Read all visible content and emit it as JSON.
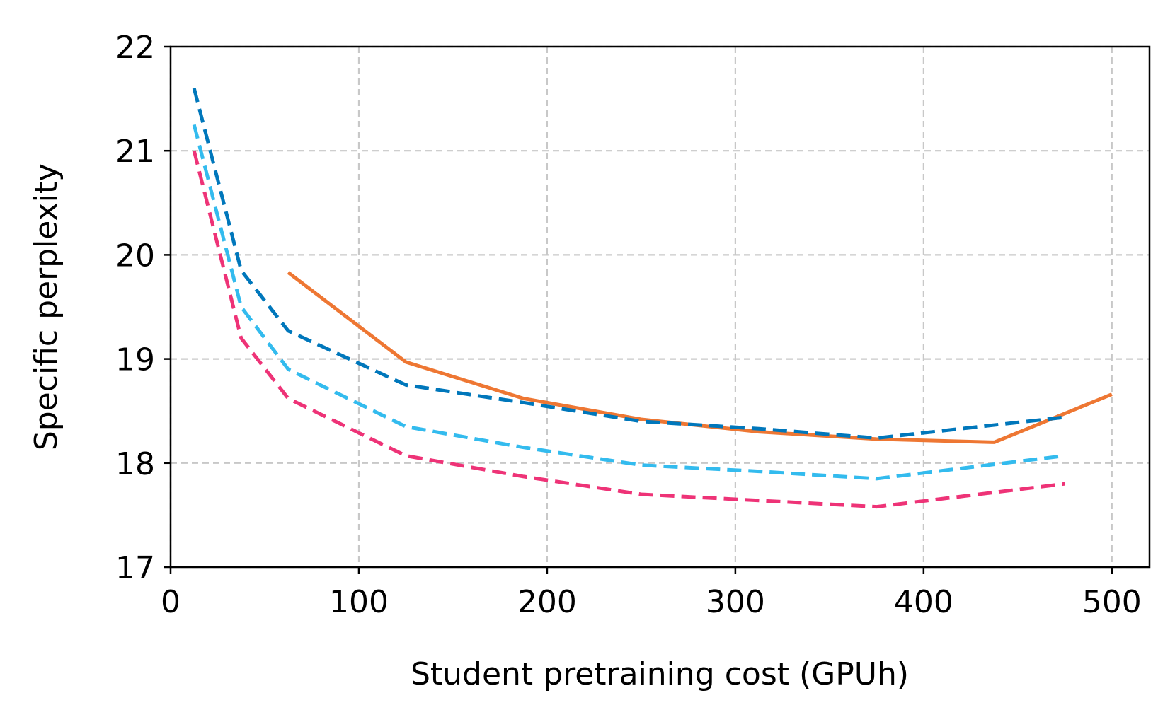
{
  "chart_data": {
    "type": "line",
    "title": "",
    "xlabel": "Student pretraining cost (GPUh)",
    "ylabel": "Specific perplexity",
    "xlim": [
      0,
      520
    ],
    "ylim": [
      17,
      22
    ],
    "xticks": [
      0,
      100,
      200,
      300,
      400,
      500
    ],
    "yticks": [
      17,
      18,
      19,
      20,
      21,
      22
    ],
    "grid": true,
    "legend": "none",
    "series": [
      {
        "name": "solid-orange",
        "color": "#ee7733",
        "style": "solid",
        "x": [
          62.5,
          125,
          187.5,
          250,
          312.5,
          375,
          437.5,
          500
        ],
        "y": [
          19.83,
          18.97,
          18.62,
          18.42,
          18.3,
          18.23,
          18.2,
          18.66
        ]
      },
      {
        "name": "dashed-dark-blue",
        "color": "#0077bb",
        "style": "dashed",
        "x": [
          12.5,
          37.5,
          62.5,
          125,
          187.5,
          250,
          312.5,
          375,
          475
        ],
        "y": [
          21.6,
          19.85,
          19.27,
          18.75,
          18.58,
          18.4,
          18.33,
          18.24,
          18.44
        ]
      },
      {
        "name": "dashed-light-blue",
        "color": "#33bbee",
        "style": "dashed",
        "x": [
          12.5,
          37.5,
          62.5,
          125,
          187.5,
          250,
          312.5,
          375,
          475
        ],
        "y": [
          21.25,
          19.5,
          18.9,
          18.35,
          18.15,
          17.98,
          17.92,
          17.85,
          18.07
        ]
      },
      {
        "name": "dashed-magenta",
        "color": "#ee3377",
        "style": "dashed",
        "x": [
          12.5,
          37.5,
          62.5,
          125,
          187.5,
          250,
          312.5,
          375,
          475
        ],
        "y": [
          21.0,
          19.2,
          18.62,
          18.07,
          17.87,
          17.7,
          17.64,
          17.58,
          17.8
        ]
      }
    ]
  }
}
